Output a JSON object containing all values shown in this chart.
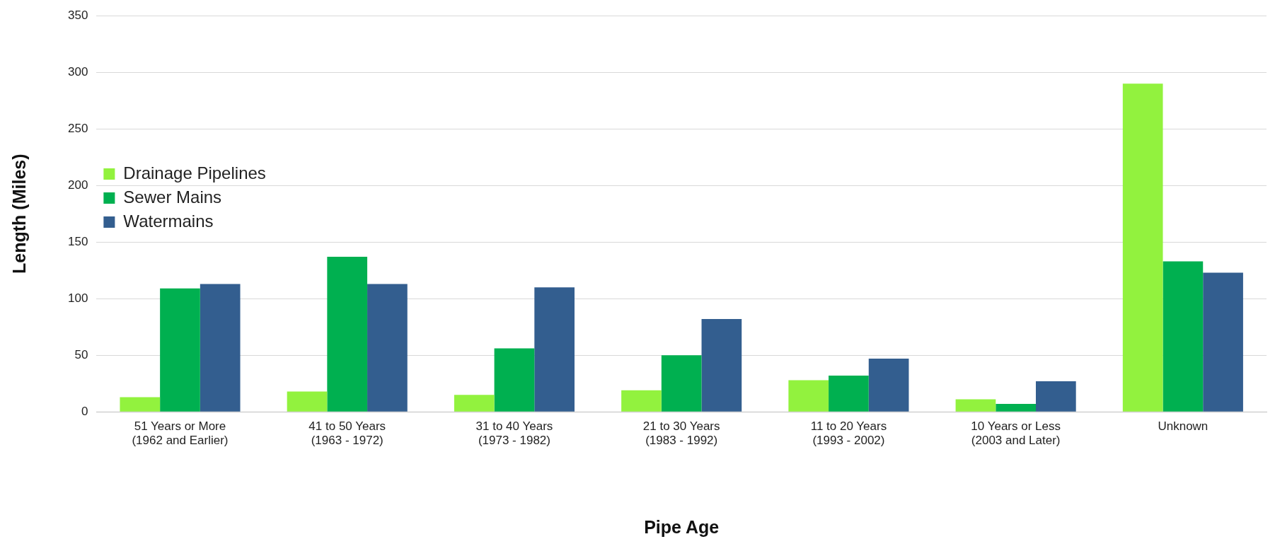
{
  "chart_data": {
    "type": "bar",
    "xlabel": "Pipe Age",
    "ylabel": "Length (Miles)",
    "categories": [
      "51 Years or More\n(1962 and Earlier)",
      "41 to 50 Years\n(1963 - 1972)",
      "31 to 40 Years\n(1973 - 1982)",
      "21 to 30 Years\n(1983 - 1992)",
      "11 to 20 Years\n(1993 - 2002)",
      "10 Years or Less\n(2003 and Later)",
      "Unknown"
    ],
    "series": [
      {
        "name": "Drainage Pipelines",
        "color": "#92f23e",
        "values": [
          13,
          18,
          15,
          19,
          28,
          11,
          290
        ]
      },
      {
        "name": "Sewer Mains",
        "color": "#00b050",
        "values": [
          109,
          137,
          56,
          50,
          32,
          7,
          133
        ]
      },
      {
        "name": "Watermains",
        "color": "#335e8f",
        "values": [
          113,
          113,
          110,
          82,
          47,
          27,
          123
        ]
      }
    ],
    "ylim": [
      0,
      350
    ],
    "yticks": [
      0,
      50,
      100,
      150,
      200,
      250,
      300,
      350
    ],
    "grid": "y",
    "legend": "top"
  }
}
